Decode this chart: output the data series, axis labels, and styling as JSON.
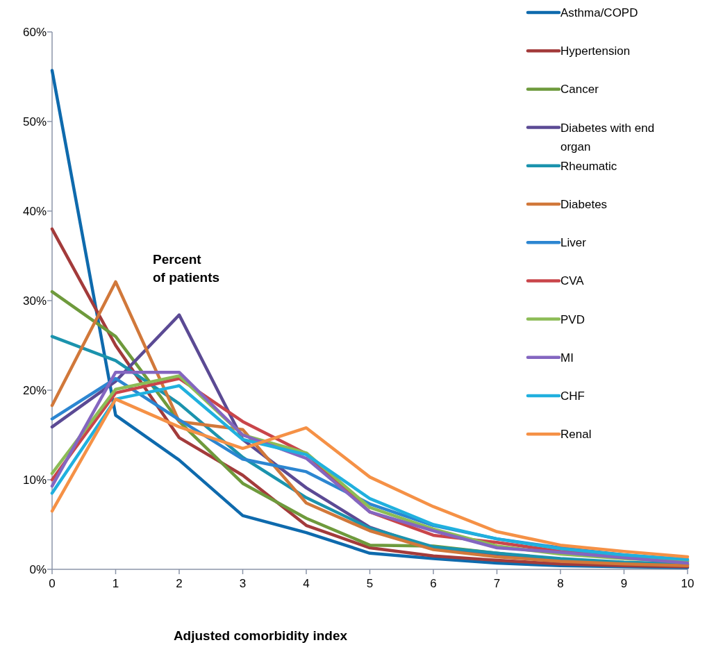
{
  "chart_data": {
    "type": "line",
    "xlabel": "Adjusted comorbidity index",
    "ylabel": "Percent of patients",
    "x": [
      0,
      1,
      2,
      3,
      4,
      5,
      6,
      7,
      8,
      9,
      10
    ],
    "xlim": [
      0,
      10
    ],
    "xticks": [
      0,
      1,
      2,
      3,
      4,
      5,
      6,
      7,
      8,
      9,
      10
    ],
    "ylim": [
      0,
      60
    ],
    "yticks": [
      {
        "value": 0,
        "label": "0%"
      },
      {
        "value": 10,
        "label": "10%"
      },
      {
        "value": 20,
        "label": "20%"
      },
      {
        "value": 30,
        "label": "30%"
      },
      {
        "value": 40,
        "label": "40%"
      },
      {
        "value": 50,
        "label": "50%"
      },
      {
        "value": 60,
        "label": "60%"
      }
    ],
    "grid": false,
    "legend": "right",
    "marker": "none",
    "line_style": "solid",
    "series": [
      {
        "name": "Asthma/COPD",
        "color": "#0e6aad",
        "values": [
          55.7,
          17.2,
          12.2,
          6.0,
          4.1,
          1.8,
          1.2,
          0.7,
          0.4,
          0.3,
          0.2
        ]
      },
      {
        "name": "Hypertension",
        "color": "#a33b3b",
        "values": [
          38,
          25,
          14.7,
          10.5,
          4.9,
          2.4,
          1.5,
          1.0,
          0.6,
          0.4,
          0.3
        ]
      },
      {
        "name": "Cancer",
        "color": "#6e9a3c",
        "values": [
          31,
          26,
          16.5,
          9.6,
          5.7,
          2.7,
          2.6,
          1.8,
          1.0,
          0.7,
          0.5
        ]
      },
      {
        "name": "Diabetes with end organ",
        "color": "#5b4a94",
        "values": [
          15.9,
          21,
          28.4,
          14.5,
          9.1,
          4.7,
          2.3,
          1.5,
          1.0,
          0.7,
          0.5
        ]
      },
      {
        "name": "Rheumatic",
        "color": "#1b93ad",
        "values": [
          26,
          23.3,
          18.5,
          12.5,
          8,
          4.6,
          2.5,
          1.8,
          1.2,
          0.8,
          0.6
        ]
      },
      {
        "name": "Diabetes",
        "color": "#d1783a",
        "values": [
          18.3,
          32.1,
          16.5,
          15.6,
          7.4,
          4.3,
          2.2,
          1.4,
          0.9,
          0.6,
          0.4
        ]
      },
      {
        "name": "Liver",
        "color": "#2c86d1",
        "values": [
          16.8,
          21.3,
          16.7,
          12.3,
          10.9,
          7.3,
          4.9,
          3.4,
          2.4,
          1.6,
          1.0
        ]
      },
      {
        "name": "CVA",
        "color": "#c9454a",
        "values": [
          10,
          19.7,
          21.3,
          16.5,
          12.9,
          6.4,
          3.8,
          3.0,
          2.0,
          1.4,
          0.9
        ]
      },
      {
        "name": "PVD",
        "color": "#8cbc56",
        "values": [
          10.7,
          20.1,
          21.6,
          15.0,
          13.0,
          6.9,
          4.5,
          2.6,
          1.7,
          1.2,
          0.9
        ]
      },
      {
        "name": "MI",
        "color": "#8466c0",
        "values": [
          9.3,
          22,
          22,
          15.0,
          12.4,
          6.4,
          4.3,
          2.4,
          1.9,
          1.3,
          0.7
        ]
      },
      {
        "name": "CHF",
        "color": "#20b0de",
        "values": [
          8.5,
          19.0,
          20.5,
          14.5,
          12.8,
          7.9,
          5.0,
          3.4,
          2.3,
          1.6,
          1.1
        ]
      },
      {
        "name": "Renal",
        "color": "#f59146",
        "values": [
          6.5,
          19.0,
          15.9,
          13.5,
          15.8,
          10.3,
          7.0,
          4.2,
          2.7,
          2.0,
          1.4
        ]
      }
    ]
  }
}
